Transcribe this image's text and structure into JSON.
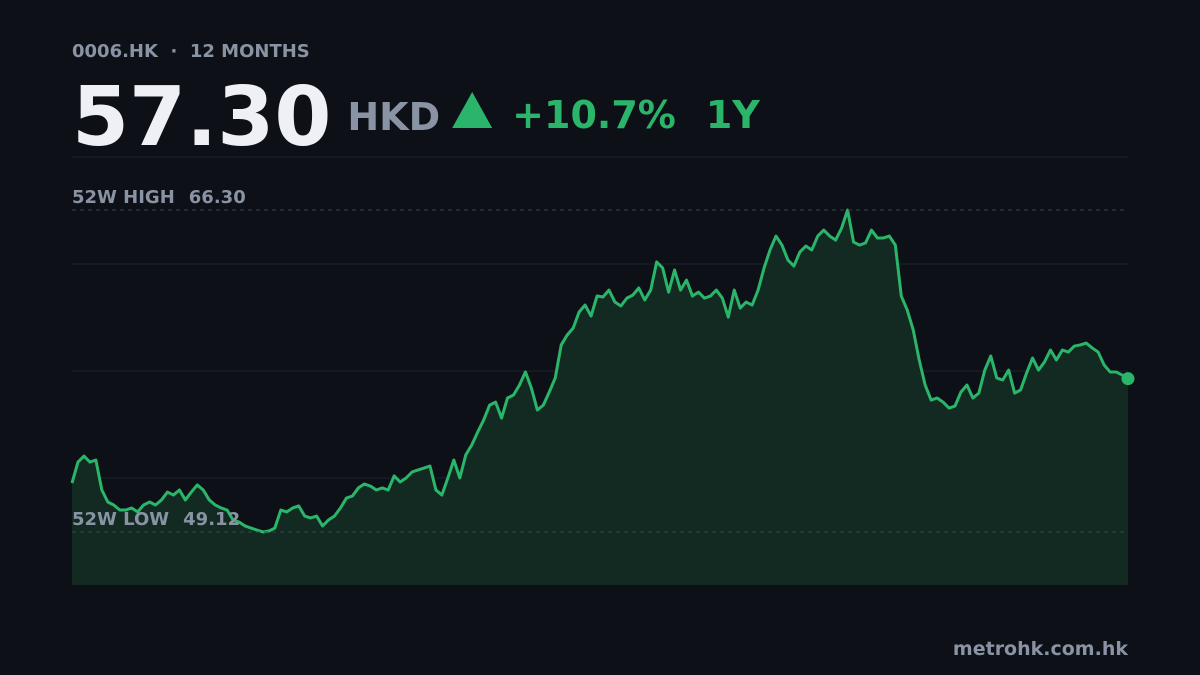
{
  "chart_data": {
    "type": "area",
    "header": "0006.HK  ·  12 MONTHS",
    "price": "57.30",
    "currency": "HKD",
    "change": "+10.7%",
    "range": "1Y",
    "source": "metrohk.com.hk",
    "color": "#2bb56a",
    "fill": "#122a21",
    "ylim": [
      46.29,
      69.13
    ],
    "reference_lines": [
      {
        "name": "52W HIGH",
        "value": 66.3,
        "value_label": "66.30"
      },
      {
        "name": "52W LOW",
        "value": 49.12,
        "value_label": "49.12"
      }
    ],
    "values": [
      51.73,
      52.85,
      53.17,
      52.85,
      52.96,
      51.36,
      50.72,
      50.56,
      50.29,
      50.29,
      50.4,
      50.19,
      50.56,
      50.72,
      50.56,
      50.83,
      51.25,
      51.09,
      51.36,
      50.83,
      51.25,
      51.63,
      51.36,
      50.83,
      50.56,
      50.4,
      50.29,
      49.76,
      49.65,
      49.44,
      49.33,
      49.22,
      49.12,
      49.17,
      49.33,
      50.29,
      50.19,
      50.4,
      50.51,
      49.97,
      49.87,
      49.97,
      49.44,
      49.76,
      49.97,
      50.4,
      50.93,
      51.04,
      51.47,
      51.68,
      51.57,
      51.36,
      51.47,
      51.36,
      52.11,
      51.79,
      52.0,
      52.32,
      52.43,
      52.53,
      52.64,
      51.36,
      51.09,
      52.0,
      52.96,
      52.0,
      53.23,
      53.76,
      54.45,
      55.09,
      55.89,
      56.05,
      55.2,
      56.27,
      56.43,
      56.96,
      57.66,
      56.8,
      55.63,
      55.89,
      56.59,
      57.34,
      59.1,
      59.63,
      60.0,
      60.86,
      61.23,
      60.64,
      61.71,
      61.66,
      62.03,
      61.39,
      61.18,
      61.6,
      61.76,
      62.14,
      61.5,
      62.03,
      63.53,
      63.21,
      61.92,
      63.1,
      62.03,
      62.56,
      61.71,
      61.92,
      61.6,
      61.71,
      62.03,
      61.6,
      60.59,
      62.03,
      61.07,
      61.39,
      61.23,
      62.03,
      63.21,
      64.17,
      64.91,
      64.43,
      63.63,
      63.31,
      64.06,
      64.38,
      64.17,
      64.91,
      65.23,
      64.91,
      64.7,
      65.34,
      66.3,
      64.59,
      64.43,
      64.54,
      65.23,
      64.81,
      64.81,
      64.91,
      64.43,
      61.71,
      60.96,
      59.9,
      58.3,
      56.96,
      56.16,
      56.27,
      56.05,
      55.73,
      55.84,
      56.59,
      56.96,
      56.27,
      56.53,
      57.76,
      58.51,
      57.34,
      57.23,
      57.76,
      56.53,
      56.7,
      57.6,
      58.4,
      57.76,
      58.19,
      58.83,
      58.3,
      58.83,
      58.72,
      59.04,
      59.1,
      59.2,
      58.94,
      58.72,
      58.03,
      57.66,
      57.66,
      57.5,
      57.3
    ]
  }
}
